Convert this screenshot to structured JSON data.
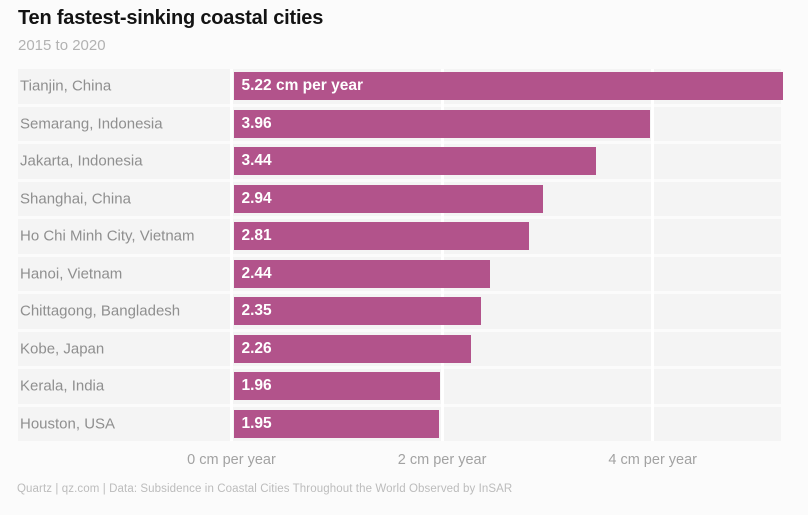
{
  "header": {
    "title": "Ten fastest-sinking coastal cities",
    "subtitle": "2015 to 2020"
  },
  "chart_data": {
    "type": "bar",
    "orientation": "horizontal",
    "title": "Ten fastest-sinking coastal cities",
    "subtitle": "2015 to 2020",
    "unit": "cm per year",
    "categories": [
      "Tianjin, China",
      "Semarang, Indonesia",
      "Jakarta, Indonesia",
      "Shanghai, China",
      "Ho Chi Minh City, Vietnam",
      "Hanoi, Vietnam",
      "Chittagong, Bangladesh",
      "Kobe, Japan",
      "Kerala, India",
      "Houston, USA"
    ],
    "values": [
      5.22,
      3.96,
      3.44,
      2.94,
      2.81,
      2.44,
      2.35,
      2.26,
      1.96,
      1.95
    ],
    "bar_labels": [
      "5.22 cm per year",
      "3.96",
      "3.44",
      "2.94",
      "2.81",
      "2.44",
      "2.35",
      "2.26",
      "1.96",
      "1.95"
    ],
    "x_ticks": [
      {
        "value": 0,
        "label": "0 cm per year"
      },
      {
        "value": 2,
        "label": "2 cm per year"
      },
      {
        "value": 4,
        "label": "4 cm per year"
      }
    ],
    "xlim": [
      0,
      5.22
    ],
    "grid": true,
    "legend": false,
    "bar_color": "#b2538b",
    "stripe_color": "#f4f4f4",
    "background_color": "#fbfbfb"
  },
  "footer": {
    "source": "Quartz | qz.com | Data: Subsidence in Coastal Cities Throughout the World Observed by InSAR"
  }
}
